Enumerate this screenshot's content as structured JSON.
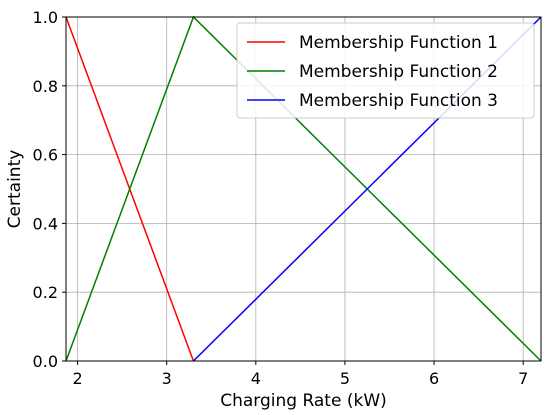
{
  "chart_data": {
    "type": "line",
    "title": "",
    "xlabel": "Charging Rate (kW)",
    "ylabel": "Certainty",
    "xlim": [
      1.87,
      7.2
    ],
    "ylim": [
      0.0,
      1.0
    ],
    "xticks": [
      2,
      3,
      4,
      5,
      6,
      7
    ],
    "yticks": [
      0.0,
      0.2,
      0.4,
      0.6,
      0.8,
      1.0
    ],
    "xtick_labels": [
      "2",
      "3",
      "4",
      "5",
      "6",
      "7"
    ],
    "ytick_labels": [
      "0.0",
      "0.2",
      "0.4",
      "0.6",
      "0.8",
      "1.0"
    ],
    "grid": true,
    "legend_position": "top-right",
    "series": [
      {
        "name": "Membership Function 1",
        "color": "#ff0000",
        "x": [
          1.87,
          3.3
        ],
        "y": [
          1.0,
          0.0
        ]
      },
      {
        "name": "Membership Function 2",
        "color": "#008000",
        "x": [
          1.87,
          3.3,
          7.2
        ],
        "y": [
          0.0,
          1.0,
          0.0
        ]
      },
      {
        "name": "Membership Function 3",
        "color": "#0000ff",
        "x": [
          3.3,
          7.2
        ],
        "y": [
          0.0,
          1.0
        ]
      }
    ]
  }
}
